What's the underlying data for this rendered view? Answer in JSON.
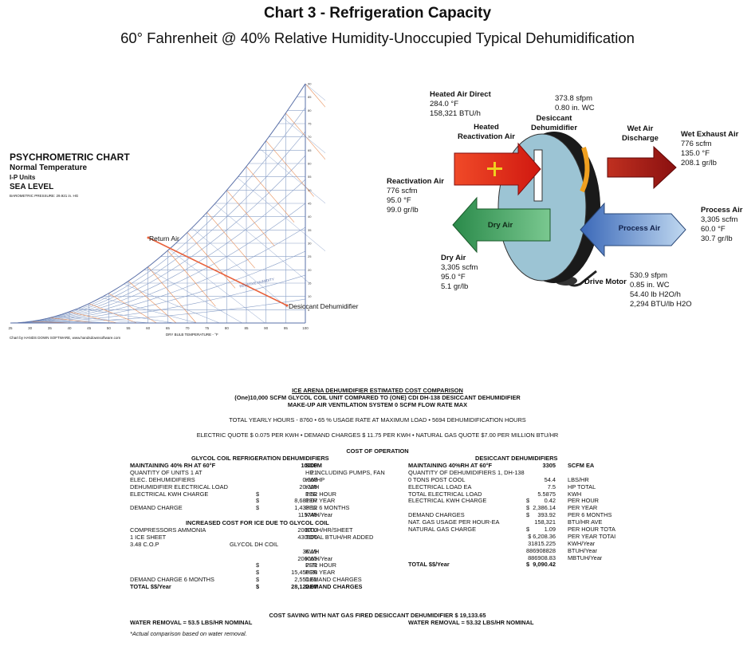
{
  "header": {
    "title": "Chart 3 - Refrigeration Capacity",
    "subtitle": "60° Fahrenheit @ 40% Relative Humidity-Unoccupied Typical Dehumidification"
  },
  "psychrometric": {
    "title": "PSYCHROMETRIC CHART",
    "line1": "Normal Temperature",
    "line2": "I-P Units",
    "line3": "SEA LEVEL",
    "pressure": "BAROMETRIC PRESSURE: 29.921 in. HG",
    "return_air": "Return Air",
    "desiccant": "Desiccant Dehumidifier",
    "x_axis": "DRY BULB TEMPERATURE - °F",
    "credit": "Chart by HANDS DOWN SOFTWARE, www.handsdownsoftware.com",
    "rel_hum": "RELATIVE HUMIDITY",
    "x_ticks": [
      "25",
      "30",
      "35",
      "40",
      "45",
      "50",
      "55",
      "60",
      "65",
      "70",
      "75",
      "80",
      "85",
      "90",
      "95",
      "100"
    ],
    "y_ticks": [
      "5",
      "10",
      "15",
      "20",
      "25",
      "30",
      "35",
      "40",
      "45",
      "50",
      "55",
      "60",
      "65",
      "70",
      "75",
      "80",
      "85",
      "90"
    ],
    "colors": {
      "grid": "#8aa0c8",
      "wetbulb": "#e8905a",
      "process": "#e8603a"
    }
  },
  "system": {
    "heated_air_direct": {
      "title": "Heated Air Direct",
      "l1": "284.0 °F",
      "l2": "158,321 BTU/h"
    },
    "top_flow": {
      "l1": "373.8 sfpm",
      "l2": "0.80 in. WC"
    },
    "heated_react": {
      "l1": "Heated",
      "l2": "Reactivation Air"
    },
    "desiccant": {
      "l1": "Desiccant",
      "l2": "Dehumidifier"
    },
    "wet_air": {
      "l1": "Wet Air",
      "l2": "Discharge"
    },
    "wet_exhaust": {
      "title": "Wet Exhaust Air",
      "l1": "776 scfm",
      "l2": "135.0 °F",
      "l3": "208.1 gr/lb"
    },
    "reactivation": {
      "title": "Reactivation Air",
      "l1": "776 scfm",
      "l2": "95.0 °F",
      "l3": "99.0 gr/lb"
    },
    "process": {
      "title": "Process Air",
      "l1": "3,305 scfm",
      "l2": "60.0 °F",
      "l3": "30.7 gr/lb"
    },
    "dry_air_arrow": "Dry Air",
    "process_arrow": "Process Air",
    "dry_air": {
      "title": "Dry Air",
      "l1": "3,305 scfm",
      "l2": "95.0 °F",
      "l3": "5.1 gr/lb"
    },
    "drive_motor": "Drive Motor",
    "motor_flow": {
      "l1": "530.9 sfpm",
      "l2": "0.85 in. WC",
      "l3": "54.40 lb H2O/h",
      "l4": "2,294 BTU/lb H2O"
    },
    "colors": {
      "red": "#e83020",
      "darkred": "#b02018",
      "green": "#3a9a5a",
      "blue": "#4a78c0",
      "wheel": "#9cc4d4",
      "yellow": "#f0d020"
    }
  },
  "cost": {
    "h1": "ICE ARENA  DEHUMIDIFIER ESTIMATED COST COMPARISON",
    "h2": "(One)10,000 SCFM GLYCOL COIL  UNIT  COMPARED TO (ONE) CDI  DH-138 DESICCANT DEHUMIDIFIER",
    "h3": "MAKE-UP AIR VENTILATION SYSTEM          0 SCFM FLOW RATE MAX",
    "hours": "TOTAL YEARLY HOURS - 8760   •   65 % USAGE RATE AT MAXIMUM LOAD   •   5694 DEHUMIDIFICATION HOURS",
    "quotes": "ELECTRIC QUOTE $ 0.075 PER KWH   •   DEMAND CHARGES $ 11.75 PER KWH   •   NATURAL GAS QUOTE $7.00 PER MILLION BTU/HR",
    "cost_of_operation": "COST OF OPERATION",
    "left_heading": "GLYCOL COIL REFRIGERATION DEHUMIDIFIERS",
    "right_heading": "DESICCANT DEHUMIDIFIERS",
    "left_rows": [
      [
        "MAINTAINING 40% RH AT 60°F",
        "",
        "10000",
        "SCFM"
      ],
      [
        "QUANTITY OF UNITS 1 AT",
        "",
        "21",
        "HP INCLUDING PUMPS, FAN"
      ],
      [
        "ELEC. DEHUMIDIFIERS",
        "",
        "0.968",
        "KW/HP"
      ],
      [
        "DEHUMIDIFIER ELECTRICAL LOAD",
        "",
        "20.328",
        "KWH"
      ],
      [
        "ELECTRICAL KWH CHARGE",
        "$",
        "1.52",
        "PER HOUR"
      ],
      [
        "",
        "$",
        "8,681.07",
        "PER YEAR"
      ],
      [
        "DEMAND CHARGE",
        "$",
        "1,433.12",
        "PER 6 MONTHS"
      ],
      [
        "",
        "",
        "115748",
        "KWH/Year"
      ]
    ],
    "increased_heading": "INCREASED COST FOR ICE DUE TO GLYCOL COIL",
    "left_rows2": [
      [
        "COMPRESSORS AMMONIA",
        "",
        "200000",
        "BTUH/HR/SHEET"
      ],
      [
        "1 ICE SHEET",
        "",
        "430000",
        "TOTAL BTUH/HR ADDED"
      ],
      [
        "3.48 C.O.P",
        "GLYCOL DH COIL",
        "",
        ""
      ],
      [
        "",
        "",
        "36.19",
        "KWH"
      ],
      [
        "",
        "",
        "206063",
        "KWH/Year"
      ],
      [
        "",
        "$",
        "2.71",
        "PER HOUR"
      ],
      [
        "",
        "$",
        "15,456.26",
        "PER YEAR"
      ],
      [
        "DEMAND CHARGE 6 MONTHS",
        "$",
        "2,551.61",
        "DEMAND CHARGES"
      ],
      [
        "TOTAL $$/Year",
        "$",
        "28,122.07",
        "DEMAND CHARGES"
      ]
    ],
    "right_rows": [
      [
        "MAINTAINING 40%RH AT 60°F",
        "",
        "3305",
        "SCFM EA"
      ],
      [
        "QUANTITY OF DEHUMIDIFIERS 1, DH-138",
        "",
        "",
        ""
      ],
      [
        "0    TONS POST COOL",
        "",
        "54.4",
        "LBS/HR"
      ],
      [
        "ELECTRICAL LOAD EA",
        "",
        "7.5",
        "HP TOTAL"
      ],
      [
        "TOTAL ELECTRICAL LOAD",
        "",
        "5.5875",
        "KWH"
      ],
      [
        "ELECTRICAL KWH CHARGE",
        "$",
        "0.42",
        "PER HOUR"
      ],
      [
        "",
        "$",
        "2,386.14",
        "PER YEAR"
      ],
      [
        "DEMAND CHARGES",
        "$",
        "393.92",
        "PER 6 MONTHS"
      ],
      [
        "NAT. GAS USAGE PER HOUR-EA",
        "",
        "158,321",
        "BTU/HR AVE"
      ],
      [
        "NATURAL GAS CHARGE",
        "$",
        "1.09",
        "PER HOUR TOTA"
      ],
      [
        "",
        "",
        "$ 6,208.36",
        "PER YEAR TOTAI"
      ],
      [
        "",
        "",
        "31815.225",
        "KWH/Year"
      ],
      [
        "",
        "",
        "886908828",
        "BTUH/Year"
      ],
      [
        "",
        "",
        "886908.83",
        "MBTUH/Year"
      ],
      [
        "TOTAL $$/Year",
        "$",
        "9,090.42",
        ""
      ]
    ],
    "saving": "COST SAVING WITH NAT GAS FIRED DESICCANT DEHUMIDIFIER $ 19,133.65",
    "water_left": "WATER REMOVAL = 53.5 LBS/HR NOMINAL",
    "water_right": "WATER REMOVAL = 53.32 LBS/HR NOMINAL",
    "footnote": "*Actual comparison based on water removal."
  }
}
